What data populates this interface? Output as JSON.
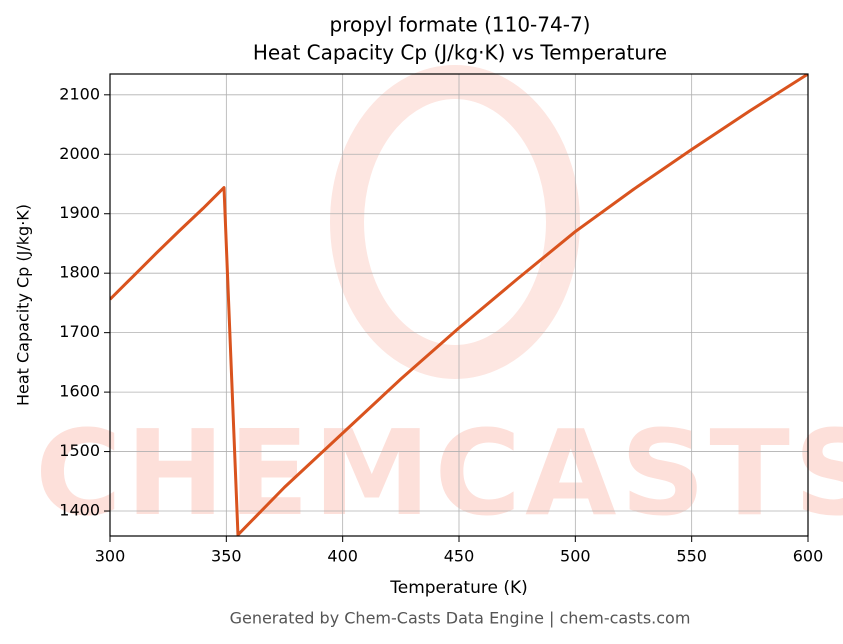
{
  "chart_data": {
    "type": "line",
    "title": "propyl formate (110-74-7)",
    "subtitle": "Heat Capacity Cp (J/kg·K) vs Temperature",
    "x_label": "Temperature (K)",
    "y_label": "Heat Capacity Cp (J/kg·K)",
    "footer": "Generated by Chem-Casts Data Engine | chem-casts.com",
    "watermark": "CHEMCASTS",
    "x": [
      300,
      310,
      320,
      330,
      340,
      349,
      355,
      375,
      400,
      425,
      450,
      475,
      500,
      525,
      550,
      575,
      600
    ],
    "series": [
      {
        "name": "Cp",
        "color": "#d9531e",
        "values": [
          1756,
          1795,
          1834,
          1872,
          1909,
          1944,
          1360,
          1440,
          1531,
          1622,
          1708,
          1790,
          1870,
          1941,
          2008,
          2073,
          2135
        ]
      }
    ],
    "xlim": [
      300,
      600
    ],
    "xticks": [
      300,
      350,
      400,
      450,
      500,
      550,
      600
    ],
    "ylim": [
      1358,
      2135
    ],
    "yticks": [
      1400,
      1500,
      1600,
      1700,
      1800,
      1900,
      2000,
      2100
    ],
    "grid": true
  }
}
